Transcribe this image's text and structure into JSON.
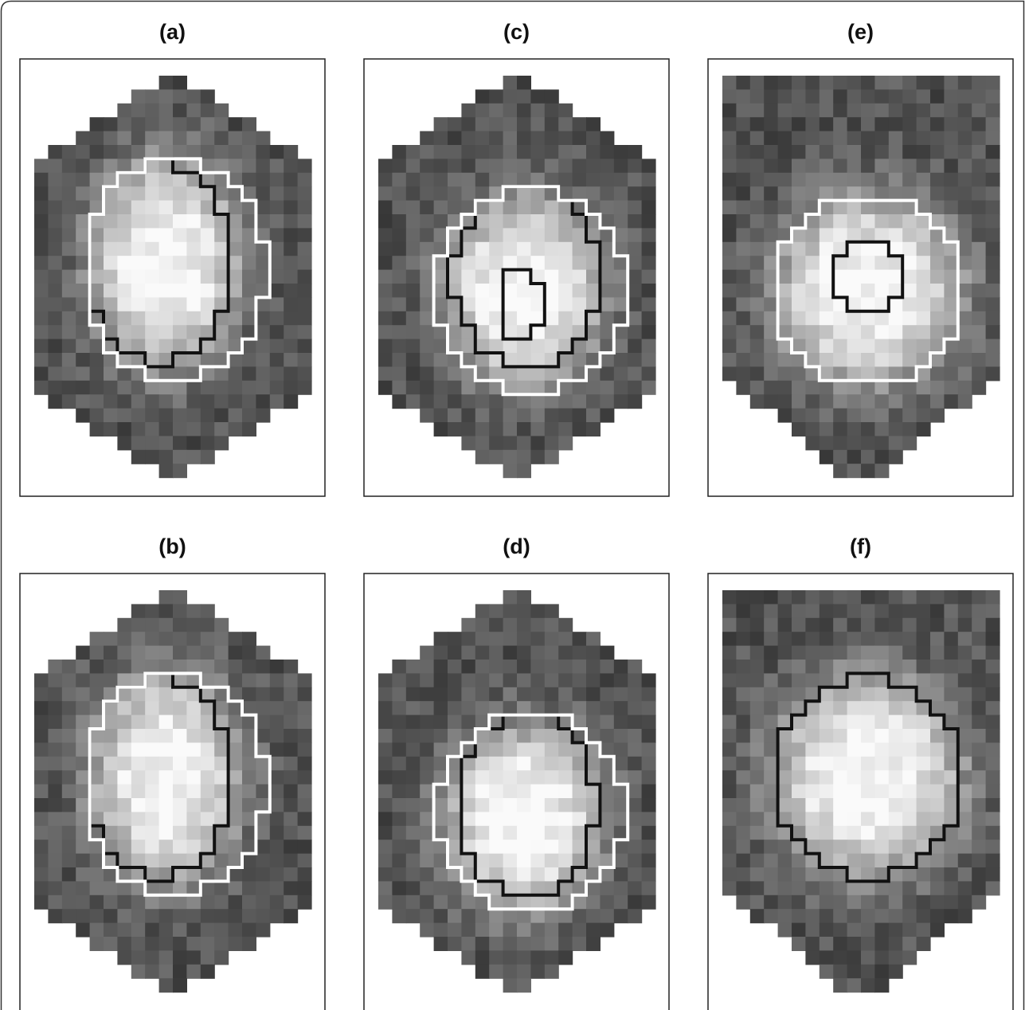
{
  "panels": [
    {
      "label": "(a)"
    },
    {
      "label": "(c)"
    },
    {
      "label": "(e)"
    },
    {
      "label": "(b)"
    },
    {
      "label": "(d)"
    },
    {
      "label": "(f)"
    }
  ]
}
